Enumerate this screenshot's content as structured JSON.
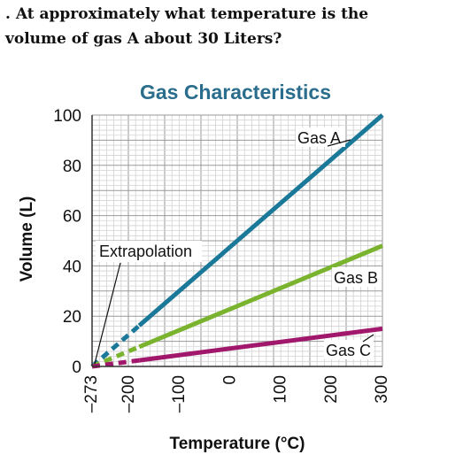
{
  "question": {
    "line1": ". At approximately what temperature is the",
    "line2": "volume of gas A about 30 Liters?"
  },
  "chart_data": {
    "type": "line",
    "title": "Gas Characteristics",
    "xlabel": "Temperature (°C)",
    "ylabel": "Volume (L)",
    "xlim": [
      -273,
      300
    ],
    "ylim": [
      0,
      100
    ],
    "x_ticks": [
      -273,
      -200,
      -100,
      0,
      100,
      200,
      300
    ],
    "x_tick_labels": [
      "–273",
      "–200",
      "–100",
      "0",
      "100",
      "200",
      "300"
    ],
    "y_ticks": [
      0,
      20,
      40,
      60,
      80,
      100
    ],
    "y_tick_labels": [
      "0",
      "20",
      "40",
      "60",
      "80",
      "100"
    ],
    "grid": true,
    "extrapolation_from": -180,
    "series": [
      {
        "name": "Gas A",
        "color": "#1a7899",
        "x": [
          -273,
          300
        ],
        "y": [
          0,
          100
        ]
      },
      {
        "name": "Gas B",
        "color": "#7ab32e",
        "x": [
          -273,
          300
        ],
        "y": [
          0,
          48
        ]
      },
      {
        "name": "Gas C",
        "color": "#a0176b",
        "x": [
          -273,
          300
        ],
        "y": [
          0,
          15
        ]
      }
    ],
    "annotations": [
      {
        "text": "Extrapolation"
      },
      {
        "text": "Gas A"
      },
      {
        "text": "Gas B"
      },
      {
        "text": "Gas C"
      }
    ]
  }
}
